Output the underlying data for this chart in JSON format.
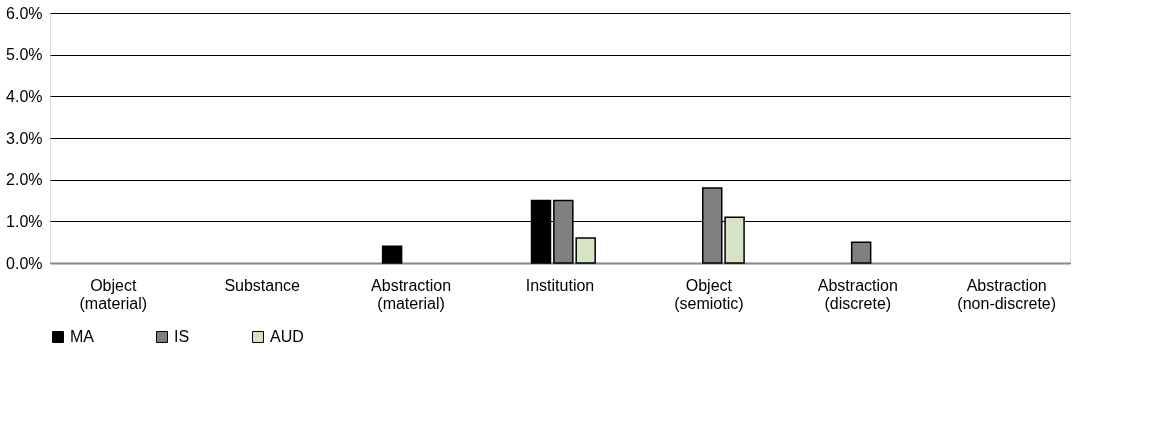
{
  "chart_data": {
    "type": "bar",
    "categories": [
      "Object\n(material)",
      "Substance",
      "Abstraction\n(material)",
      "Institution",
      "Object\n(semiotic)",
      "Abstraction\n(discrete)",
      "Abstraction\n(non-discrete)"
    ],
    "series": [
      {
        "name": "MA",
        "color": "#000000",
        "values": [
          null,
          null,
          0.4,
          1.5,
          null,
          null,
          null
        ]
      },
      {
        "name": "IS",
        "color": "#808080",
        "values": [
          null,
          null,
          null,
          1.5,
          1.8,
          0.5,
          null
        ]
      },
      {
        "name": "AUD",
        "color": "#d7e4c4",
        "values": [
          null,
          null,
          null,
          0.6,
          1.1,
          null,
          null
        ]
      }
    ],
    "ylim": [
      0,
      6
    ],
    "yticks": [
      {
        "value": 0,
        "label": "0.0%"
      },
      {
        "value": 1,
        "label": "1.0%"
      },
      {
        "value": 2,
        "label": "2.0%"
      },
      {
        "value": 3,
        "label": "3.0%"
      },
      {
        "value": 4,
        "label": "4.0%"
      },
      {
        "value": 5,
        "label": "5.0%"
      },
      {
        "value": 6,
        "label": "6.0%"
      }
    ],
    "grid": "y",
    "legend": "bottom"
  }
}
